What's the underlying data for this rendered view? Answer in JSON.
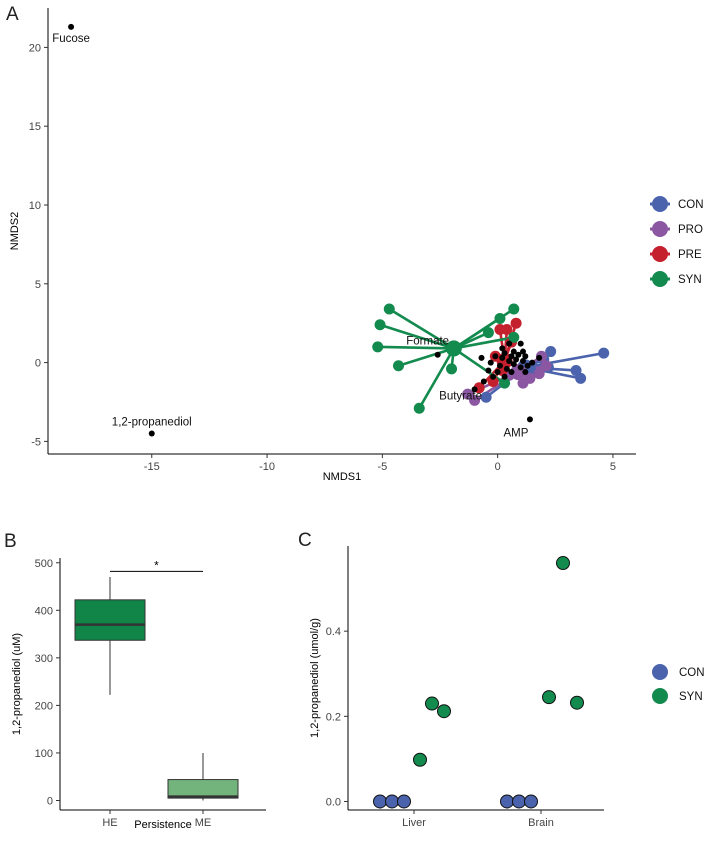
{
  "colors": {
    "CON": "#4a63ac",
    "PRO": "#8b57a3",
    "PRE": "#c5202e",
    "SYN": "#138a4e",
    "HE": "#118447",
    "ME": "#72b47c",
    "black": "#000000"
  },
  "chart_data": [
    {
      "panel": "A",
      "type": "scatter",
      "xlabel": "NMDS1",
      "ylabel": "NMDS2",
      "xlim": [
        -19.5,
        6
      ],
      "ylim": [
        -5.8,
        22.5
      ],
      "xticks": [
        -15,
        -10,
        -5,
        0,
        5
      ],
      "yticks": [
        -5,
        0,
        5,
        10,
        15,
        20
      ],
      "legend": [
        {
          "key": "CON",
          "label": "CON"
        },
        {
          "key": "PRO",
          "label": "PRO"
        },
        {
          "key": "PRE",
          "label": "PRE"
        },
        {
          "key": "SYN",
          "label": "SYN"
        }
      ],
      "metabolites": [
        {
          "label": "Fucose",
          "x": -18.5,
          "y": 21.3
        },
        {
          "label": "1,2-propanediol",
          "x": -15.0,
          "y": -4.5
        },
        {
          "label": "Formate",
          "x": -2.6,
          "y": 0.5
        },
        {
          "label": "Butyrate",
          "x": -1.0,
          "y": -1.7
        },
        {
          "label": "AMP",
          "x": 1.4,
          "y": -3.6
        }
      ],
      "metabolite_cloud": [
        [
          -0.3,
          0.0
        ],
        [
          -0.1,
          0.4
        ],
        [
          0.1,
          -0.2
        ],
        [
          0.2,
          0.3
        ],
        [
          0.3,
          0.6
        ],
        [
          0.4,
          -0.4
        ],
        [
          0.5,
          0.1
        ],
        [
          0.6,
          0.4
        ],
        [
          0.7,
          -0.1
        ],
        [
          0.8,
          0.2
        ],
        [
          0.9,
          0.5
        ],
        [
          1.0,
          -0.3
        ],
        [
          1.1,
          0.1
        ],
        [
          1.2,
          0.4
        ],
        [
          1.3,
          -0.2
        ],
        [
          0.0,
          -0.6
        ],
        [
          0.3,
          -0.9
        ],
        [
          0.6,
          -0.6
        ],
        [
          -0.2,
          -0.9
        ],
        [
          1.5,
          0.0
        ],
        [
          0.2,
          0.9
        ],
        [
          0.7,
          0.7
        ],
        [
          1.1,
          0.7
        ],
        [
          1.8,
          0.3
        ],
        [
          -0.6,
          -1.2
        ],
        [
          -0.4,
          -0.5
        ],
        [
          1.2,
          -0.6
        ],
        [
          0.5,
          1.2
        ],
        [
          -0.7,
          0.3
        ],
        [
          1.0,
          1.2
        ]
      ],
      "groups": [
        {
          "name": "CON",
          "centroid": [
            1.2,
            -0.3
          ],
          "points": [
            [
              4.6,
              0.6
            ],
            [
              3.6,
              -1.0
            ],
            [
              3.4,
              -0.5
            ],
            [
              2.3,
              0.7
            ],
            [
              2.2,
              -0.3
            ],
            [
              -0.5,
              -2.2
            ],
            [
              2.0,
              0.2
            ],
            [
              1.5,
              -0.6
            ]
          ]
        },
        {
          "name": "PRO",
          "centroid": [
            0.9,
            -0.6
          ],
          "points": [
            [
              -1.3,
              -2.0
            ],
            [
              -1.0,
              -2.4
            ],
            [
              0.5,
              -0.8
            ],
            [
              1.1,
              -1.3
            ],
            [
              1.4,
              -1.0
            ],
            [
              1.8,
              -0.7
            ],
            [
              2.1,
              -0.2
            ],
            [
              1.9,
              0.4
            ]
          ]
        },
        {
          "name": "PRE",
          "centroid": [
            0.3,
            0.1
          ],
          "points": [
            [
              0.1,
              2.1
            ],
            [
              0.4,
              2.1
            ],
            [
              0.8,
              2.5
            ],
            [
              -0.8,
              -1.6
            ],
            [
              -0.2,
              -1.2
            ],
            [
              0.6,
              1.3
            ],
            [
              -0.1,
              0.4
            ],
            [
              0.2,
              -0.5
            ]
          ]
        },
        {
          "name": "SYN",
          "centroid": [
            -1.9,
            0.9
          ],
          "points": [
            [
              -4.7,
              3.4
            ],
            [
              -5.1,
              2.4
            ],
            [
              -5.2,
              1.0
            ],
            [
              -4.3,
              -0.2
            ],
            [
              -3.4,
              -2.9
            ],
            [
              -2.0,
              -0.4
            ],
            [
              0.1,
              2.8
            ],
            [
              0.7,
              3.4
            ],
            [
              0.7,
              1.6
            ],
            [
              0.3,
              -1.3
            ],
            [
              -0.4,
              1.9
            ]
          ]
        }
      ]
    },
    {
      "panel": "B",
      "type": "box",
      "xlabel": "Persistence",
      "ylabel": "1,2-propanediol (uM)",
      "ylim": [
        -20,
        510
      ],
      "yticks": [
        0,
        100,
        200,
        300,
        400,
        500
      ],
      "categories": [
        "HE",
        "ME"
      ],
      "boxes": [
        {
          "name": "HE",
          "min": 222,
          "q1": 337,
          "median": 370,
          "q3": 422,
          "max": 470
        },
        {
          "name": "ME",
          "min": 0,
          "q1": 5,
          "median": 8,
          "q3": 44,
          "max": 100
        }
      ],
      "significance": "*"
    },
    {
      "panel": "C",
      "type": "scatter",
      "xlabel": "",
      "ylabel": "1,2-propanediol (umol/g)",
      "ylim": [
        -0.02,
        0.6
      ],
      "yticks": [
        0.0,
        0.2,
        0.4
      ],
      "categories": [
        "Liver",
        "Brain"
      ],
      "legend": [
        {
          "key": "CON",
          "label": "CON"
        },
        {
          "key": "SYN",
          "label": "SYN"
        }
      ],
      "points": [
        {
          "group": "CON",
          "category": "Liver",
          "offset": -0.34,
          "value": 0.0
        },
        {
          "group": "CON",
          "category": "Liver",
          "offset": -0.22,
          "value": 0.0
        },
        {
          "group": "CON",
          "category": "Liver",
          "offset": -0.1,
          "value": 0.0
        },
        {
          "group": "SYN",
          "category": "Liver",
          "offset": 0.06,
          "value": 0.098
        },
        {
          "group": "SYN",
          "category": "Liver",
          "offset": 0.18,
          "value": 0.23
        },
        {
          "group": "SYN",
          "category": "Liver",
          "offset": 0.3,
          "value": 0.212
        },
        {
          "group": "CON",
          "category": "Brain",
          "offset": -0.34,
          "value": 0.0
        },
        {
          "group": "CON",
          "category": "Brain",
          "offset": -0.22,
          "value": 0.0
        },
        {
          "group": "CON",
          "category": "Brain",
          "offset": -0.1,
          "value": 0.0
        },
        {
          "group": "SYN",
          "category": "Brain",
          "offset": 0.08,
          "value": 0.245
        },
        {
          "group": "SYN",
          "category": "Brain",
          "offset": 0.22,
          "value": 0.56
        },
        {
          "group": "SYN",
          "category": "Brain",
          "offset": 0.36,
          "value": 0.232
        }
      ]
    }
  ],
  "panel_labels": {
    "a": "A",
    "b": "B",
    "c": "C"
  }
}
